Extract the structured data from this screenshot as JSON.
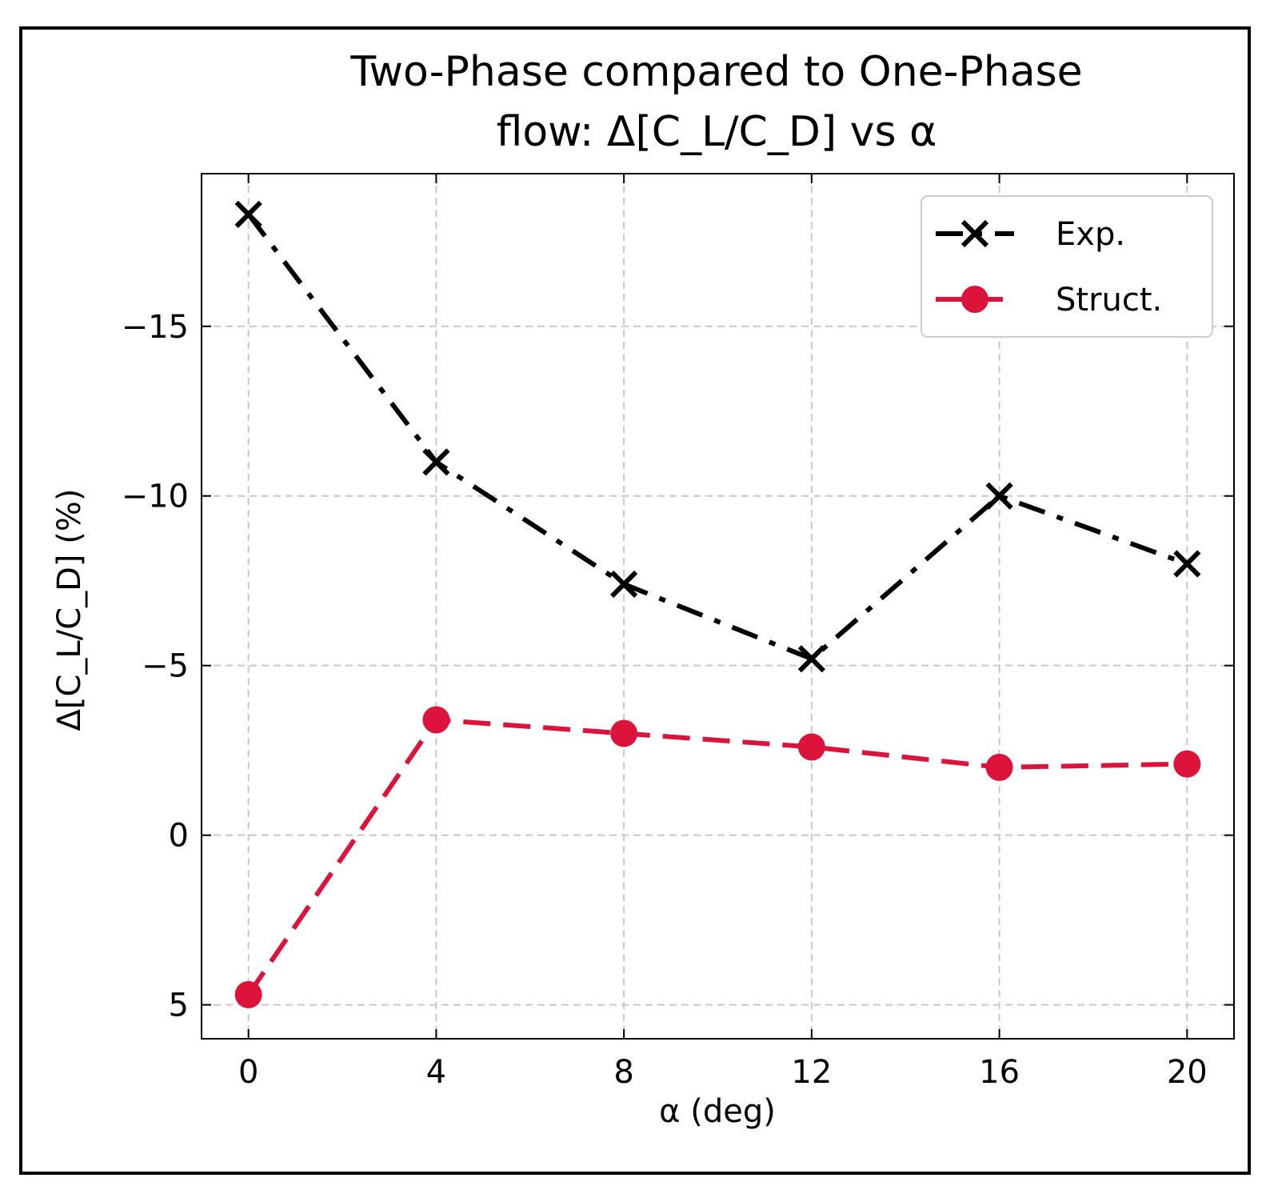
{
  "chart_data": {
    "type": "line",
    "title": "Two-Phase compared to One-Phase flow: Δ[C_L/C_D] vs α",
    "title_lines": [
      "Two-Phase compared to One-Phase",
      "flow: Δ[C_L/C_D] vs α"
    ],
    "xlabel": "α (deg)",
    "ylabel": "Δ[C_L/C_D] (%)",
    "x": [
      0,
      4,
      8,
      12,
      16,
      20
    ],
    "xticks": [
      0,
      4,
      8,
      12,
      16,
      20
    ],
    "xtick_labels": [
      "0",
      "4",
      "8",
      "12",
      "16",
      "20"
    ],
    "yticks": [
      -15,
      -10,
      -5,
      0,
      5
    ],
    "ytick_labels": [
      "−15",
      "−10",
      "−5",
      "0",
      "5"
    ],
    "xlim": [
      -1,
      21
    ],
    "ylim": [
      6,
      -19.5
    ],
    "y_inverted": true,
    "grid": true,
    "legend_position": "top-right",
    "series": [
      {
        "name": "Exp.",
        "values": [
          -18.3,
          -11.0,
          -7.4,
          -5.2,
          -10.0,
          -8.0
        ],
        "color": "#000000",
        "marker": "x",
        "linestyle": "dashdot"
      },
      {
        "name": "Struct.",
        "values": [
          4.7,
          -3.4,
          -3.0,
          -2.6,
          -2.0,
          -2.1
        ],
        "color": "#dc143c",
        "marker": "o",
        "linestyle": "dashed"
      }
    ]
  }
}
